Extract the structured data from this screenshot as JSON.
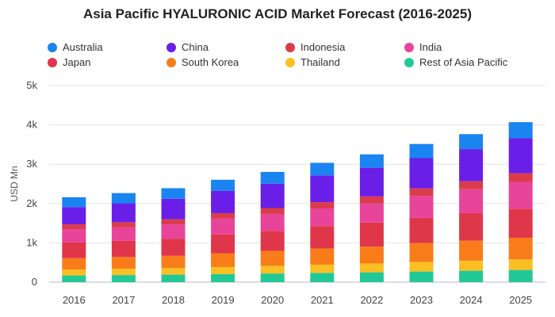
{
  "chart_data": {
    "type": "bar",
    "stacked": true,
    "title": "Asia Pacific HYALURONIC ACID Market Forecast (2016-2025)",
    "xlabel": "",
    "ylabel": "USD Mn",
    "ylim": [
      0,
      5000
    ],
    "yticks": [
      "0",
      "1k",
      "2k",
      "3k",
      "4k",
      "5k"
    ],
    "grid": true,
    "legend_position": "top",
    "categories": [
      "2016",
      "2017",
      "2018",
      "2019",
      "2020",
      "2021",
      "2022",
      "2023",
      "2024",
      "2025"
    ],
    "series": [
      {
        "name": "Rest of Asia Pacific",
        "color": "#22c997",
        "values": [
          170,
          180,
          190,
          205,
          220,
          235,
          250,
          270,
          290,
          310
        ]
      },
      {
        "name": "Thailand",
        "color": "#fbbf24",
        "values": [
          150,
          160,
          170,
          180,
          195,
          210,
          225,
          245,
          255,
          270
        ]
      },
      {
        "name": "South Korea",
        "color": "#f97c1a",
        "values": [
          290,
          300,
          310,
          350,
          380,
          410,
          430,
          480,
          510,
          550
        ]
      },
      {
        "name": "Japan",
        "color": "#e0364a",
        "values": [
          400,
          410,
          430,
          480,
          510,
          570,
          610,
          640,
          700,
          740
        ]
      },
      {
        "name": "India",
        "color": "#e8449a",
        "values": [
          340,
          350,
          370,
          400,
          430,
          450,
          490,
          560,
          610,
          680
        ]
      },
      {
        "name": "Indonesia",
        "color": "#dc3c4a",
        "values": [
          120,
          125,
          130,
          140,
          150,
          160,
          175,
          190,
          200,
          220
        ]
      },
      {
        "name": "China",
        "color": "#6a1fe8",
        "values": [
          440,
          480,
          520,
          570,
          620,
          680,
          730,
          770,
          820,
          890
        ]
      },
      {
        "name": "Australia",
        "color": "#1a84f0",
        "values": [
          250,
          260,
          270,
          280,
          300,
          320,
          340,
          360,
          380,
          410
        ]
      }
    ]
  },
  "legend": [
    {
      "label": "Australia",
      "color": "#1a84f0"
    },
    {
      "label": "China",
      "color": "#6a1fe8"
    },
    {
      "label": "Indonesia",
      "color": "#dc3c4a"
    },
    {
      "label": "India",
      "color": "#e8449a"
    },
    {
      "label": "Japan",
      "color": "#e0364a"
    },
    {
      "label": "South Korea",
      "color": "#f97c1a"
    },
    {
      "label": "Thailand",
      "color": "#fbbf24"
    },
    {
      "label": "Rest of Asia Pacific",
      "color": "#22c997"
    }
  ]
}
